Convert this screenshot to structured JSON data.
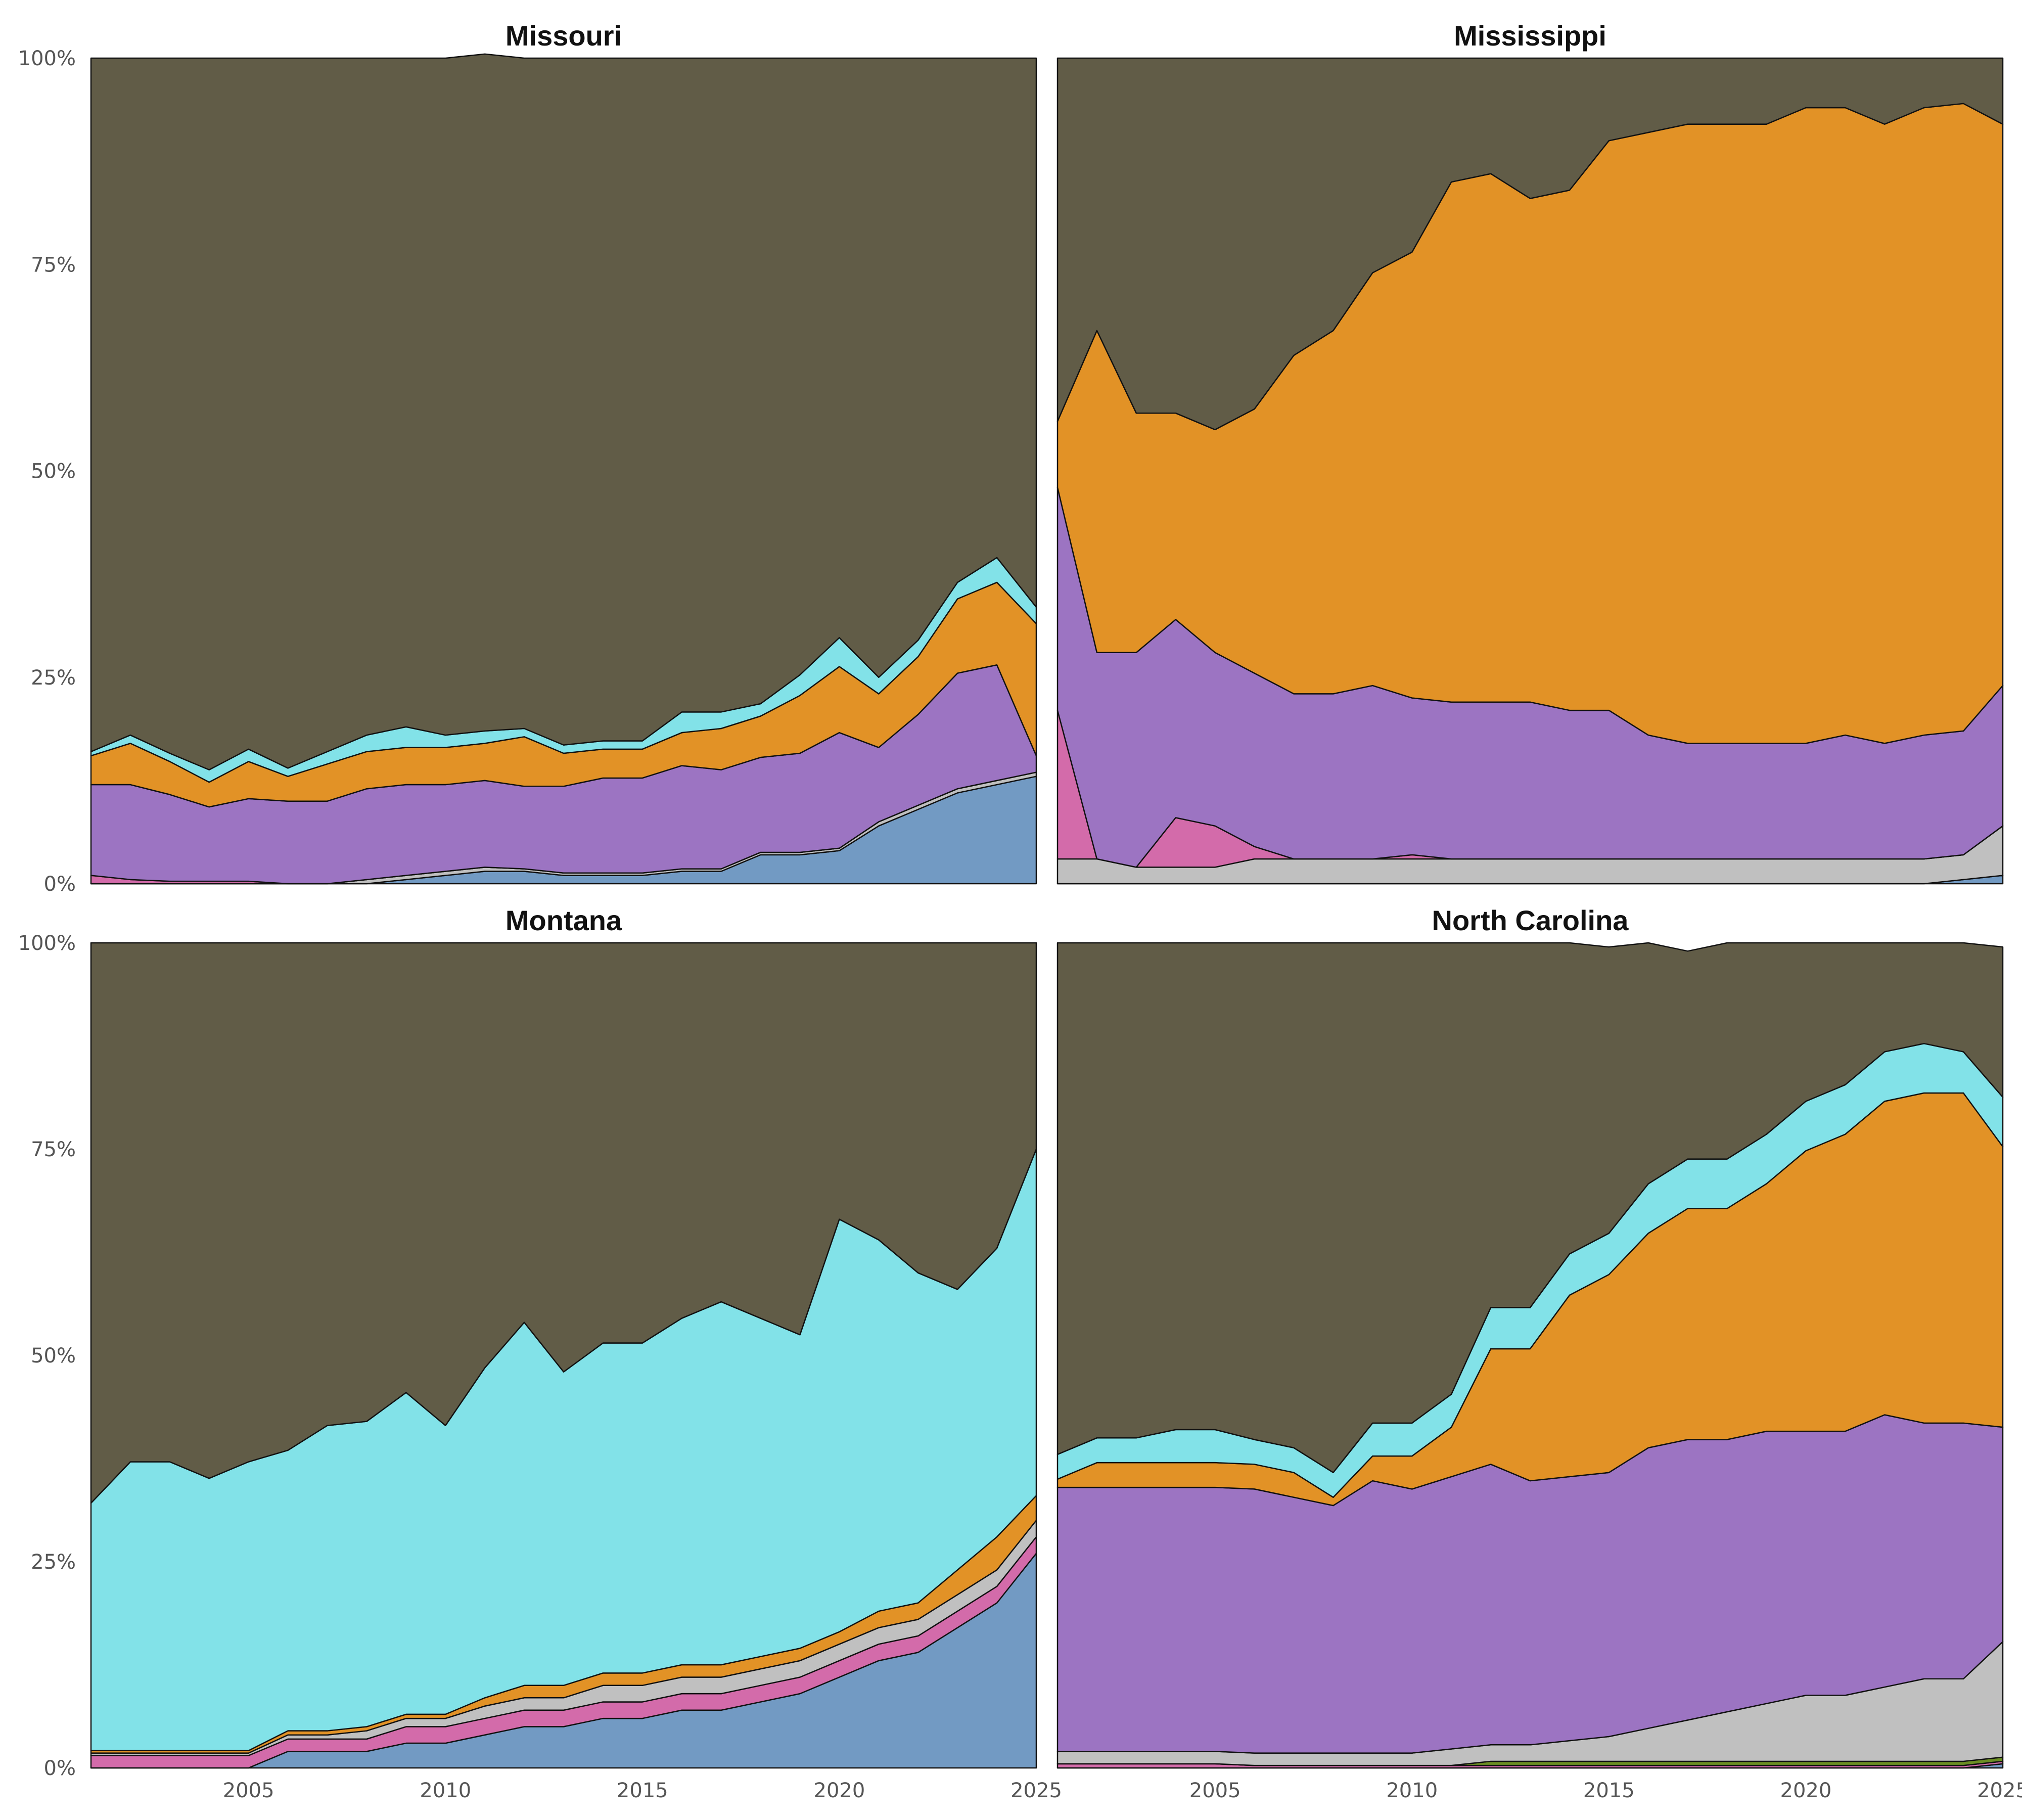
{
  "chart_data": [
    {
      "type": "area",
      "title": "Missouri",
      "xlim": [
        2001,
        2025
      ],
      "ylim": [
        0,
        100
      ],
      "y_ticks": [
        "0%",
        "25%",
        "50%",
        "75%",
        "100%"
      ],
      "x_ticks": [],
      "x_tick_values": [],
      "grid": false,
      "legend": "none",
      "x": [
        2001,
        2002,
        2003,
        2004,
        2005,
        2006,
        2007,
        2008,
        2009,
        2010,
        2011,
        2012,
        2013,
        2014,
        2015,
        2016,
        2017,
        2018,
        2019,
        2020,
        2021,
        2022,
        2023,
        2024,
        2025
      ],
      "series": [
        {
          "color": "#729ac3",
          "values": [
            0,
            0,
            0,
            0,
            0,
            0,
            0,
            0,
            0.5,
            1,
            1.5,
            1.5,
            1,
            1,
            1,
            1.5,
            1.5,
            3.5,
            3.5,
            4,
            7,
            9,
            11,
            12,
            13
          ]
        },
        {
          "color": "#c0c0c0",
          "values": [
            0,
            0,
            0,
            0,
            0,
            0,
            0,
            0.5,
            0.5,
            0.5,
            0.5,
            0.3,
            0.3,
            0.3,
            0.3,
            0.3,
            0.3,
            0.3,
            0.3,
            0.3,
            0.5,
            0.5,
            0.5,
            0.5,
            0.5
          ]
        },
        {
          "color": "#d36baa",
          "values": [
            1,
            0.5,
            0.3,
            0.3,
            0.3,
            0,
            0,
            0,
            0,
            0,
            0,
            0,
            0,
            0,
            0,
            0,
            0,
            0,
            0,
            0,
            0,
            0,
            0,
            0,
            0
          ]
        },
        {
          "color": "#9c74c2",
          "values": [
            11,
            11.5,
            10.5,
            9,
            10,
            10,
            10,
            11,
            11,
            10.5,
            10.5,
            10,
            10.5,
            11.5,
            11.5,
            12.5,
            12,
            11.5,
            12,
            14,
            9,
            11,
            14,
            14,
            2
          ]
        },
        {
          "color": "#e29226",
          "values": [
            3.5,
            5,
            4,
            3,
            4.5,
            3,
            4.5,
            4.5,
            4.5,
            4.5,
            4.5,
            6,
            4,
            3.5,
            3.5,
            4,
            5,
            5,
            7,
            8,
            6.5,
            7,
            9,
            10,
            16
          ]
        },
        {
          "color": "#82e2e8",
          "values": [
            0.5,
            1,
            1,
            1.5,
            1.5,
            1,
            1.5,
            2,
            2.5,
            1.5,
            1.5,
            1,
            1,
            1,
            1,
            2.5,
            2,
            1.5,
            2.5,
            3.5,
            2,
            2,
            2,
            3,
            2
          ]
        },
        {
          "color": "#615c47",
          "values": [
            84,
            82,
            84.2,
            86.2,
            83.7,
            86,
            84,
            82,
            81,
            82,
            82,
            81.2,
            83.2,
            82.7,
            82.7,
            79.2,
            79.2,
            78.2,
            74.7,
            70.2,
            75,
            70.5,
            63.5,
            60.5,
            66.5
          ]
        }
      ]
    },
    {
      "type": "area",
      "title": "Mississippi",
      "xlim": [
        2001,
        2025
      ],
      "ylim": [
        0,
        100
      ],
      "y_ticks": [],
      "x_ticks": [],
      "x_tick_values": [],
      "grid": false,
      "legend": "none",
      "x": [
        2001,
        2002,
        2003,
        2004,
        2005,
        2006,
        2007,
        2008,
        2009,
        2010,
        2011,
        2012,
        2013,
        2014,
        2015,
        2016,
        2017,
        2018,
        2019,
        2020,
        2021,
        2022,
        2023,
        2024,
        2025
      ],
      "series": [
        {
          "color": "#729ac3",
          "values": [
            0,
            0,
            0,
            0,
            0,
            0,
            0,
            0,
            0,
            0,
            0,
            0,
            0,
            0,
            0,
            0,
            0,
            0,
            0,
            0,
            0,
            0,
            0,
            0.5,
            1
          ]
        },
        {
          "color": "#c0c0c0",
          "values": [
            3,
            3,
            2,
            2,
            2,
            3,
            3,
            3,
            3,
            3,
            3,
            3,
            3,
            3,
            3,
            3,
            3,
            3,
            3,
            3,
            3,
            3,
            3,
            3,
            6
          ]
        },
        {
          "color": "#d36baa",
          "values": [
            18,
            0,
            0,
            6,
            5,
            1.5,
            0,
            0,
            0,
            0.5,
            0,
            0,
            0,
            0,
            0,
            0,
            0,
            0,
            0,
            0,
            0,
            0,
            0,
            0,
            0
          ]
        },
        {
          "color": "#9c74c2",
          "values": [
            27,
            25,
            26,
            24,
            21,
            21,
            20,
            20,
            21,
            19,
            19,
            19,
            19,
            18,
            18,
            15,
            14,
            14,
            14,
            14,
            15,
            14,
            15,
            15,
            17
          ]
        },
        {
          "color": "#e29226",
          "values": [
            8,
            39,
            29,
            25,
            27,
            32,
            41,
            44,
            50,
            54,
            63,
            64,
            61,
            63,
            69,
            73,
            75,
            75,
            75,
            77,
            76,
            75,
            76,
            76,
            68
          ]
        },
        {
          "color": "#615c47",
          "values": [
            44,
            33,
            43,
            43,
            45,
            42.5,
            36,
            33,
            26,
            23.5,
            15,
            14,
            17,
            16,
            10,
            9,
            8,
            8,
            8,
            6,
            6,
            8,
            6,
            5.5,
            8
          ]
        }
      ]
    },
    {
      "type": "area",
      "title": "Montana",
      "xlim": [
        2001,
        2025
      ],
      "ylim": [
        0,
        100
      ],
      "y_ticks": [
        "0%",
        "25%",
        "50%",
        "75%",
        "100%"
      ],
      "x_ticks": [
        "2005",
        "2010",
        "2015",
        "2020",
        "2025"
      ],
      "x_tick_values": [
        2005,
        2010,
        2015,
        2020,
        2025
      ],
      "grid": false,
      "legend": "none",
      "x": [
        2001,
        2002,
        2003,
        2004,
        2005,
        2006,
        2007,
        2008,
        2009,
        2010,
        2011,
        2012,
        2013,
        2014,
        2015,
        2016,
        2017,
        2018,
        2019,
        2020,
        2021,
        2022,
        2023,
        2024,
        2025
      ],
      "series": [
        {
          "color": "#729ac3",
          "values": [
            0,
            0,
            0,
            0,
            0,
            2,
            2,
            2,
            3,
            3,
            4,
            5,
            5,
            6,
            6,
            7,
            7,
            8,
            9,
            11,
            13,
            14,
            17,
            20,
            26
          ]
        },
        {
          "color": "#d36baa",
          "values": [
            1.5,
            1.5,
            1.5,
            1.5,
            1.5,
            1.5,
            1.5,
            1.5,
            2,
            2,
            2,
            2,
            2,
            2,
            2,
            2,
            2,
            2,
            2,
            2,
            2,
            2,
            2,
            2,
            2
          ]
        },
        {
          "color": "#c0c0c0",
          "values": [
            0.3,
            0.3,
            0.3,
            0.3,
            0.3,
            0.5,
            0.5,
            1,
            1,
            1,
            1.5,
            1.5,
            1.5,
            2,
            2,
            2,
            2,
            2,
            2,
            2,
            2,
            2,
            2,
            2,
            2
          ]
        },
        {
          "color": "#e29226",
          "values": [
            0.3,
            0.3,
            0.3,
            0.3,
            0.3,
            0.5,
            0.5,
            0.5,
            0.5,
            0.5,
            1,
            1.5,
            1.5,
            1.5,
            1.5,
            1.5,
            1.5,
            1.5,
            1.5,
            1.5,
            2,
            2,
            3,
            4,
            3
          ]
        },
        {
          "color": "#82e2e8",
          "values": [
            30,
            35,
            35,
            33,
            35,
            34,
            37,
            37,
            39,
            35,
            40,
            44,
            38,
            40,
            40,
            42,
            44,
            41,
            38,
            50,
            45,
            40,
            34,
            35,
            42
          ]
        },
        {
          "color": "#615c47",
          "values": [
            67.9,
            62.9,
            62.9,
            64.9,
            62.9,
            61.5,
            58.5,
            58,
            54.5,
            58.5,
            51.5,
            46,
            52,
            48.5,
            48.5,
            45.5,
            43.5,
            45.5,
            47.5,
            33.5,
            36,
            40,
            42,
            37,
            25
          ]
        }
      ]
    },
    {
      "type": "area",
      "title": "North Carolina",
      "xlim": [
        2001,
        2025
      ],
      "ylim": [
        0,
        100
      ],
      "y_ticks": [],
      "x_ticks": [
        "2005",
        "2010",
        "2015",
        "2020",
        "2025"
      ],
      "x_tick_values": [
        2005,
        2010,
        2015,
        2020,
        2025
      ],
      "grid": false,
      "legend": "none",
      "x": [
        2001,
        2002,
        2003,
        2004,
        2005,
        2006,
        2007,
        2008,
        2009,
        2010,
        2011,
        2012,
        2013,
        2014,
        2015,
        2016,
        2017,
        2018,
        2019,
        2020,
        2021,
        2022,
        2023,
        2024,
        2025
      ],
      "series": [
        {
          "color": "#729ac3",
          "values": [
            0,
            0,
            0,
            0,
            0,
            0,
            0,
            0,
            0,
            0,
            0,
            0,
            0,
            0,
            0,
            0,
            0,
            0,
            0,
            0,
            0,
            0,
            0,
            0,
            0.5
          ]
        },
        {
          "color": "#d36baa",
          "values": [
            0.5,
            0.5,
            0.5,
            0.5,
            0.5,
            0.3,
            0.3,
            0.3,
            0.3,
            0.3,
            0.3,
            0.3,
            0.3,
            0.3,
            0.3,
            0.3,
            0.3,
            0.3,
            0.3,
            0.3,
            0.3,
            0.3,
            0.3,
            0.3,
            0.3
          ]
        },
        {
          "color": "#6b8e23",
          "values": [
            0,
            0,
            0,
            0,
            0,
            0,
            0,
            0,
            0,
            0,
            0,
            0.5,
            0.5,
            0.5,
            0.5,
            0.5,
            0.5,
            0.5,
            0.5,
            0.5,
            0.5,
            0.5,
            0.5,
            0.5,
            0.5
          ]
        },
        {
          "color": "#c0c0c0",
          "values": [
            1.5,
            1.5,
            1.5,
            1.5,
            1.5,
            1.5,
            1.5,
            1.5,
            1.5,
            1.5,
            2,
            2,
            2,
            2.5,
            3,
            4,
            5,
            6,
            7,
            8,
            8,
            9,
            10,
            10,
            14
          ]
        },
        {
          "color": "#9c74c2",
          "values": [
            32,
            32,
            32,
            32,
            32,
            32,
            31,
            30,
            33,
            32,
            33,
            34,
            32,
            32,
            32,
            34,
            34,
            33,
            33,
            32,
            32,
            33,
            31,
            31,
            26
          ]
        },
        {
          "color": "#e29226",
          "values": [
            1,
            3,
            3,
            3,
            3,
            3,
            3,
            1,
            3,
            4,
            6,
            14,
            16,
            22,
            24,
            26,
            28,
            28,
            30,
            34,
            36,
            38,
            40,
            40,
            34
          ]
        },
        {
          "color": "#82e2e8",
          "values": [
            3,
            3,
            3,
            4,
            4,
            3,
            3,
            3,
            4,
            4,
            4,
            5,
            5,
            5,
            5,
            6,
            6,
            6,
            6,
            6,
            6,
            6,
            6,
            5,
            6
          ]
        },
        {
          "color": "#615c47",
          "values": [
            62,
            60,
            60,
            59,
            59,
            60.2,
            61.2,
            64.2,
            58.2,
            58.2,
            54.7,
            44.2,
            44.2,
            37.7,
            34.7,
            29.2,
            25.2,
            26.2,
            23.2,
            19.2,
            17.2,
            13.2,
            12.2,
            13.2,
            18.2
          ]
        }
      ]
    }
  ]
}
